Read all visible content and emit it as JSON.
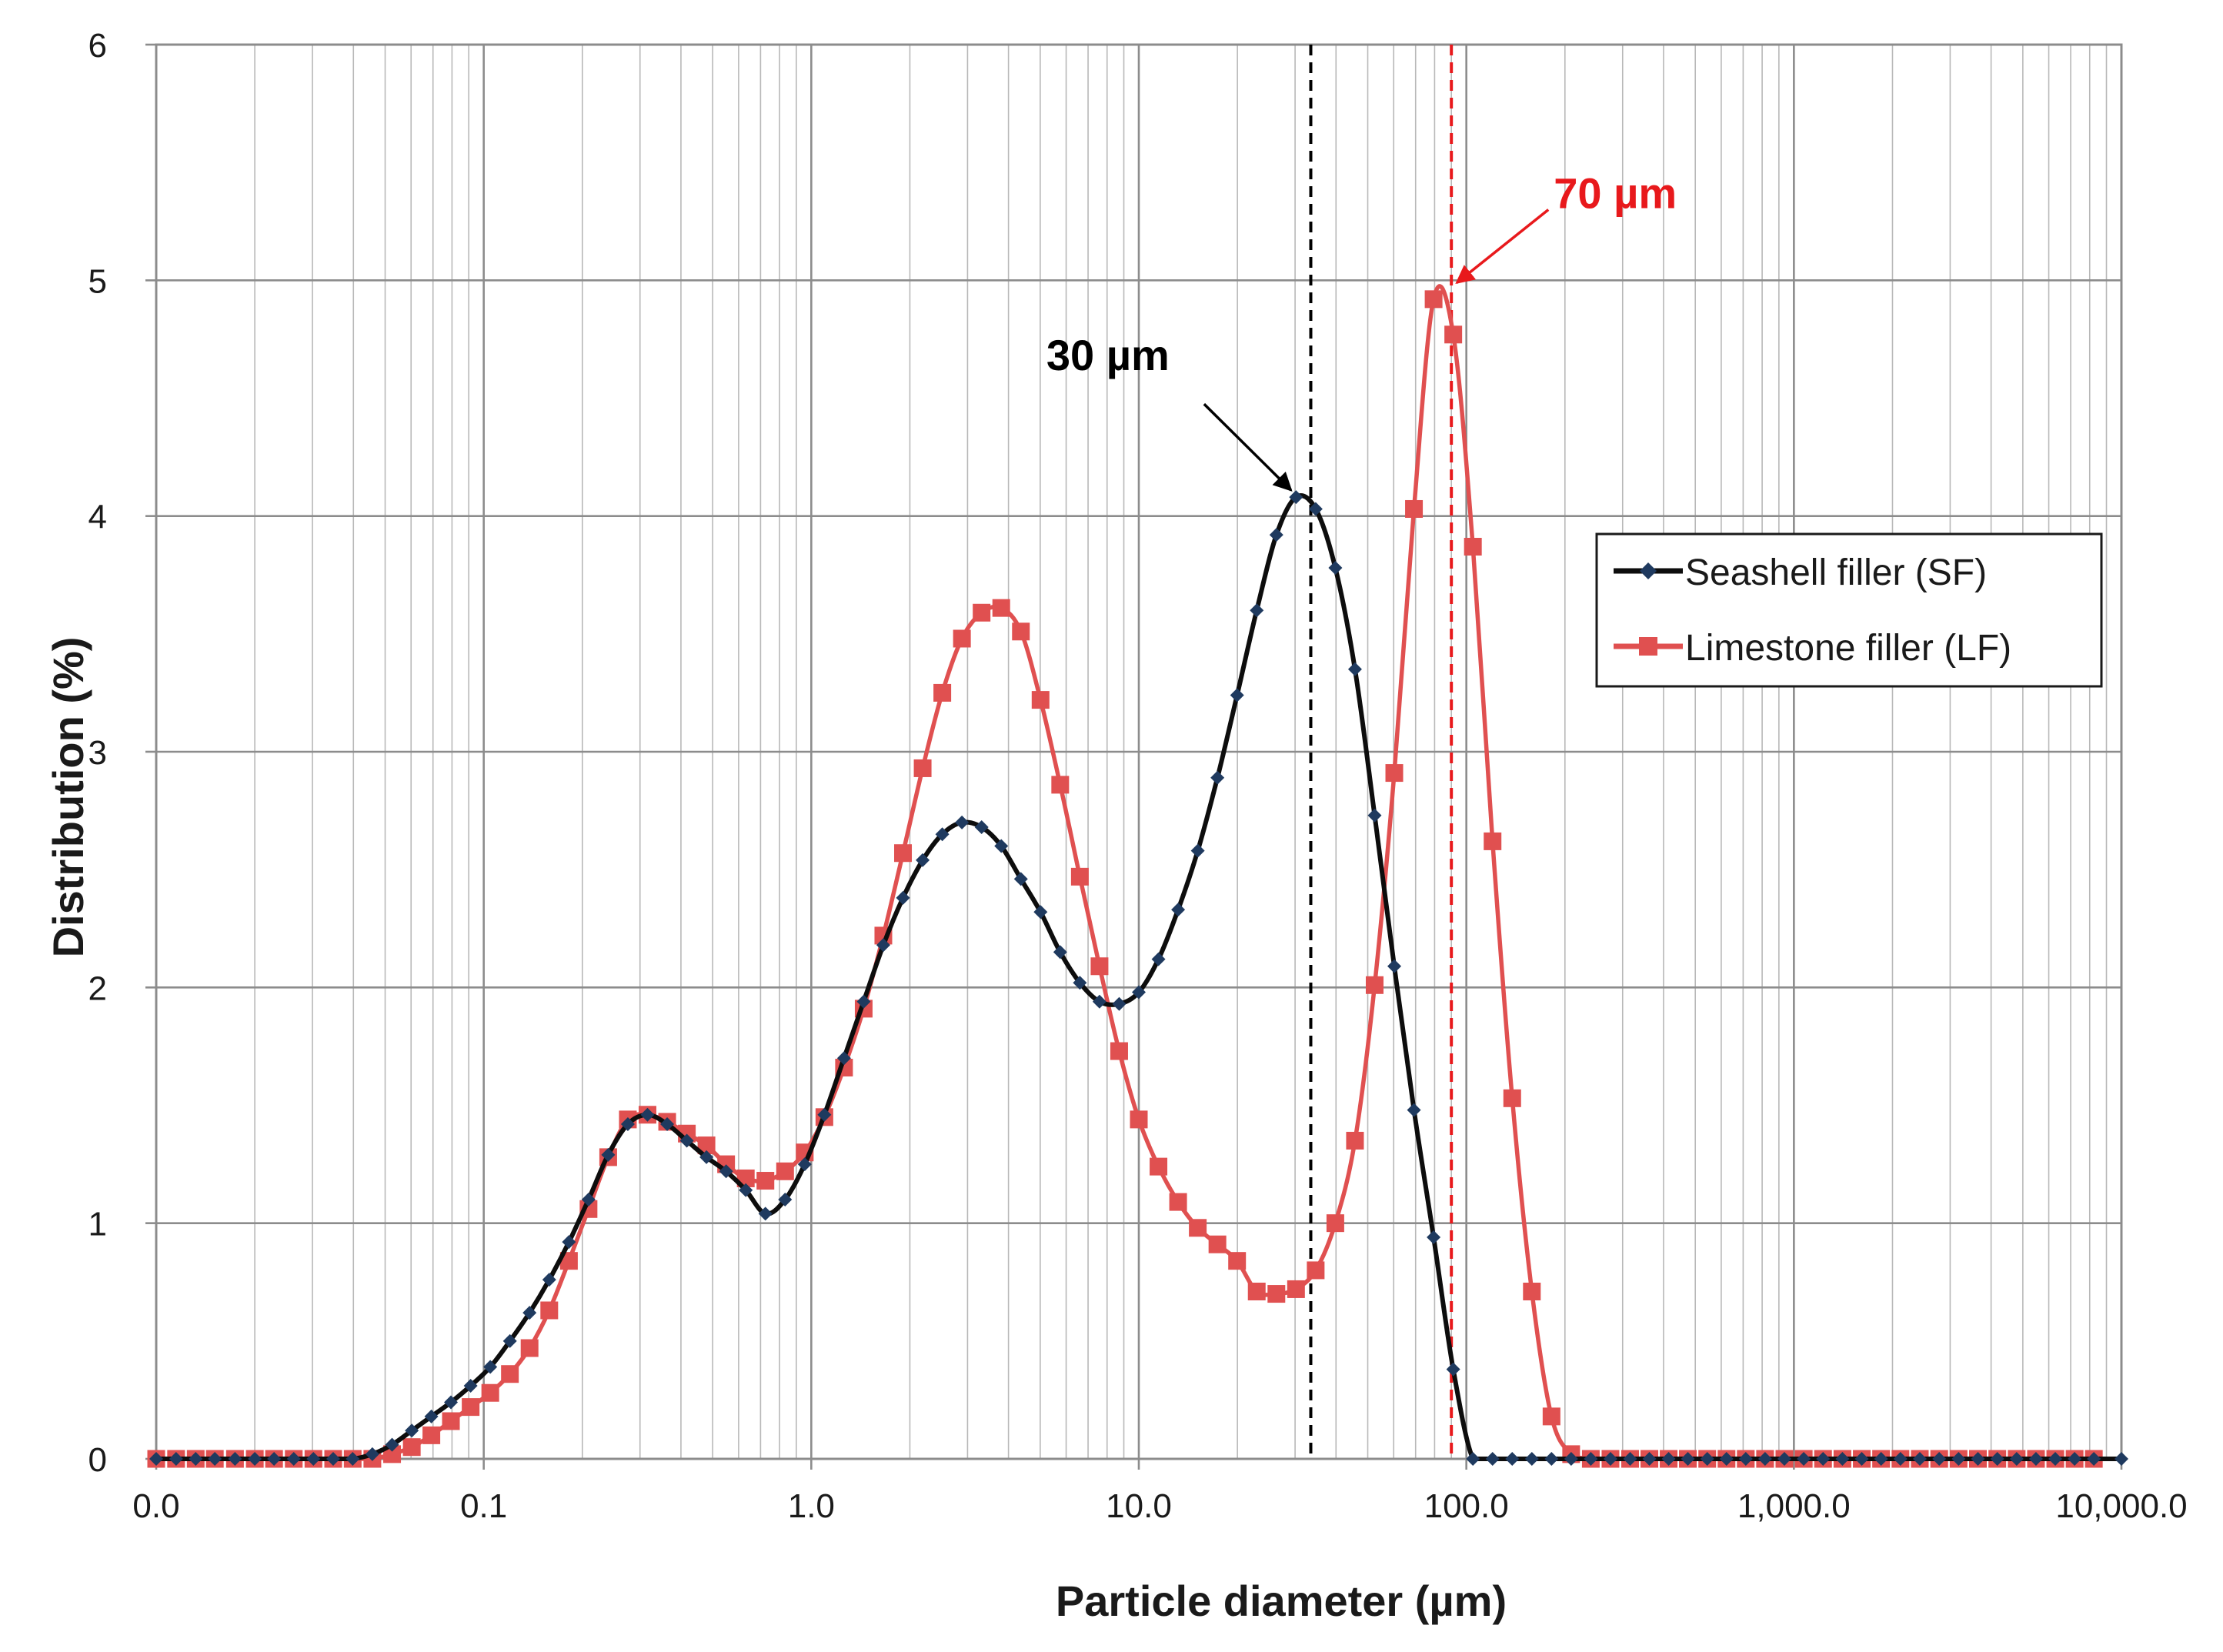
{
  "chart_data": {
    "type": "line",
    "title": "",
    "xlabel": "Particle diameter (µm)",
    "ylabel": "Distribution (%)",
    "xscale": "log",
    "xlim": [
      0.01,
      10000
    ],
    "ylim": [
      0,
      6
    ],
    "x_ticks": [
      0.01,
      0.1,
      1,
      10,
      100,
      1000,
      10000
    ],
    "x_tick_labels": [
      "0.0",
      "0.1",
      "1.0",
      "10.0",
      "100.0",
      "1,000.0",
      "10,000.0"
    ],
    "y_ticks": [
      0,
      1,
      2,
      3,
      4,
      5,
      6
    ],
    "y_tick_labels": [
      "0",
      "1",
      "2",
      "3",
      "4",
      "5",
      "6"
    ],
    "grid": true,
    "legend_position": "center-right",
    "colors": {
      "sf": "#0d0d0d",
      "sf_marker": "#1f3a5f",
      "lf": "#e05050",
      "annotation_red": "#e8191c"
    },
    "series": [
      {
        "name": "Seashell filler (SF)",
        "marker": "diamond",
        "x": [
          0.01,
          0.0115,
          0.0132,
          0.0151,
          0.0174,
          0.02,
          0.0229,
          0.0263,
          0.0302,
          0.0347,
          0.0398,
          0.0457,
          0.0525,
          0.0603,
          0.0692,
          0.0794,
          0.0912,
          0.1047,
          0.1202,
          0.138,
          0.1585,
          0.182,
          0.2089,
          0.2399,
          0.2754,
          0.3162,
          0.3631,
          0.4169,
          0.4786,
          0.5495,
          0.631,
          0.7244,
          0.8318,
          0.955,
          1.0965,
          1.2589,
          1.4454,
          1.6596,
          1.9055,
          2.1878,
          2.5119,
          2.884,
          3.3113,
          3.8019,
          4.3652,
          5.0119,
          5.7544,
          6.6069,
          7.5858,
          8.7096,
          10.0,
          11.482,
          13.183,
          15.136,
          17.378,
          19.953,
          22.909,
          26.303,
          30.2,
          34.674,
          39.811,
          45.709,
          52.481,
          60.256,
          69.183,
          79.433,
          91.201,
          104.71,
          120.23,
          138.04,
          158.49,
          181.97,
          208.93,
          239.88,
          275.42,
          316.23,
          362.08,
          414.52,
          474.57,
          543.79,
          622.69,
          713.03,
          816.59,
          935.37,
          1071.5,
          1227.6,
          1406.5,
          1611.5,
          1846.1,
          2115.1,
          2423.5,
          2777.6,
          3182.4,
          3646.6,
          4178.7,
          4788.0,
          5484.3,
          6281.4,
          7194.4,
          8237.3,
          10000
        ],
        "y": [
          0,
          0,
          0,
          0,
          0,
          0,
          0,
          0,
          0,
          0,
          0,
          0.02,
          0.06,
          0.12,
          0.18,
          0.24,
          0.31,
          0.39,
          0.5,
          0.62,
          0.76,
          0.92,
          1.1,
          1.29,
          1.42,
          1.46,
          1.42,
          1.35,
          1.28,
          1.22,
          1.14,
          1.04,
          1.1,
          1.25,
          1.46,
          1.7,
          1.94,
          2.18,
          2.38,
          2.54,
          2.65,
          2.7,
          2.68,
          2.6,
          2.46,
          2.32,
          2.15,
          2.02,
          1.94,
          1.93,
          1.98,
          2.12,
          2.33,
          2.58,
          2.89,
          3.24,
          3.6,
          3.92,
          4.08,
          4.03,
          3.78,
          3.35,
          2.73,
          2.09,
          1.48,
          0.94,
          0.38,
          0,
          0,
          0,
          0,
          0,
          0,
          0,
          0,
          0,
          0,
          0,
          0,
          0,
          0,
          0,
          0,
          0,
          0,
          0,
          0,
          0,
          0,
          0,
          0,
          0,
          0,
          0,
          0,
          0,
          0,
          0,
          0,
          0,
          0
        ]
      },
      {
        "name": "Limestone filler (LF)",
        "marker": "square",
        "x": [
          0.01,
          0.0115,
          0.0132,
          0.0151,
          0.0174,
          0.02,
          0.0229,
          0.0263,
          0.0302,
          0.0347,
          0.0398,
          0.0457,
          0.0525,
          0.0603,
          0.0692,
          0.0794,
          0.0912,
          0.1047,
          0.1202,
          0.138,
          0.1585,
          0.182,
          0.2089,
          0.2399,
          0.2754,
          0.3162,
          0.3631,
          0.4169,
          0.4786,
          0.5495,
          0.631,
          0.7244,
          0.8318,
          0.955,
          1.0965,
          1.2589,
          1.4454,
          1.6596,
          1.9055,
          2.1878,
          2.5119,
          2.884,
          3.3113,
          3.8019,
          4.3652,
          5.0119,
          5.7544,
          6.6069,
          7.5858,
          8.7096,
          10.0,
          11.482,
          13.183,
          15.136,
          17.378,
          19.953,
          22.909,
          26.303,
          30.2,
          34.674,
          39.811,
          45.709,
          52.481,
          60.256,
          69.183,
          79.433,
          91.201,
          104.71,
          120.23,
          138.04,
          158.49,
          181.97,
          208.93,
          239.88,
          275.42,
          316.23,
          362.08,
          414.52,
          474.57,
          543.79,
          622.69,
          713.03,
          816.59,
          935.37,
          1071.5,
          1227.6,
          1406.5,
          1611.5,
          1846.1,
          2115.1,
          2423.5,
          2777.6,
          3182.4,
          3646.6,
          4178.7,
          4788.0,
          5484.3,
          6281.4,
          7194.4,
          8237.3
        ],
        "y": [
          0,
          0,
          0,
          0,
          0,
          0,
          0,
          0,
          0,
          0,
          0,
          0,
          0.02,
          0.05,
          0.1,
          0.16,
          0.22,
          0.28,
          0.36,
          0.47,
          0.63,
          0.84,
          1.06,
          1.28,
          1.44,
          1.46,
          1.43,
          1.38,
          1.33,
          1.25,
          1.19,
          1.18,
          1.22,
          1.3,
          1.45,
          1.66,
          1.91,
          2.22,
          2.57,
          2.93,
          3.25,
          3.48,
          3.59,
          3.61,
          3.51,
          3.22,
          2.86,
          2.47,
          2.09,
          1.73,
          1.44,
          1.24,
          1.09,
          0.98,
          0.91,
          0.84,
          0.71,
          0.7,
          0.72,
          0.8,
          1.0,
          1.35,
          2.01,
          2.91,
          4.03,
          4.92,
          4.77,
          3.87,
          2.62,
          1.53,
          0.71,
          0.18,
          0.02,
          0,
          0,
          0,
          0,
          0,
          0,
          0,
          0,
          0,
          0,
          0,
          0,
          0,
          0,
          0,
          0,
          0,
          0,
          0,
          0,
          0,
          0,
          0,
          0,
          0,
          0,
          0
        ]
      }
    ],
    "reference_lines": [
      {
        "x": 33.5,
        "color": "#000000",
        "style": "dashed"
      },
      {
        "x": 90,
        "color": "#e8191c",
        "style": "dashed"
      }
    ],
    "annotations": [
      {
        "text": "30 µm",
        "point_x": 29.8,
        "point_y": 4.09,
        "color": "#000000"
      },
      {
        "text": "70 µm",
        "point_x": 91.5,
        "point_y": 4.98,
        "color": "#e8191c"
      }
    ]
  }
}
